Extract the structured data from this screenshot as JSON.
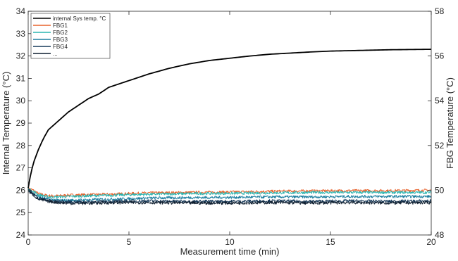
{
  "chart_data": {
    "type": "line",
    "title": "",
    "xlabel": "Measurement time (min)",
    "ylabel_left": "Internal Temperature (°C)",
    "ylabel_right": "FBG Temperature (°C)",
    "xlim": [
      0,
      20
    ],
    "ylim_left": [
      24,
      34
    ],
    "ylim_right": [
      48,
      58
    ],
    "x_ticks": [
      "0",
      "5",
      "10",
      "15",
      "20"
    ],
    "y_ticks_left": [
      "24",
      "25",
      "26",
      "27",
      "28",
      "29",
      "30",
      "31",
      "32",
      "33",
      "34"
    ],
    "y_ticks_right": [
      "48",
      "50",
      "52",
      "54",
      "56",
      "58"
    ],
    "grid": false,
    "legend_position": "top-left",
    "series": [
      {
        "name": "internal Sys temp. °C",
        "axis": "left",
        "color": "#000000",
        "noise": 0,
        "x": [
          0,
          0.1,
          0.25,
          0.5,
          0.75,
          1,
          1.5,
          2,
          2.5,
          3,
          3.5,
          4,
          5,
          6,
          7,
          8,
          9,
          10,
          11,
          12,
          13,
          14,
          15,
          16,
          17,
          18,
          19,
          20
        ],
        "y": [
          26.1,
          26.6,
          27.2,
          27.8,
          28.3,
          28.7,
          29.1,
          29.5,
          29.8,
          30.1,
          30.3,
          30.6,
          30.9,
          31.2,
          31.45,
          31.65,
          31.8,
          31.9,
          32.0,
          32.08,
          32.13,
          32.18,
          32.22,
          32.24,
          32.26,
          32.28,
          32.29,
          32.3
        ]
      },
      {
        "name": "FBG1",
        "axis": "right",
        "color": "#e8622c",
        "noise": 0.06,
        "x": [
          0,
          0.25,
          0.5,
          1,
          1.5,
          2,
          3,
          4,
          5,
          6,
          8,
          10,
          12,
          14,
          16,
          18,
          20
        ],
        "y": [
          50.1,
          50.0,
          49.85,
          49.75,
          49.75,
          49.78,
          49.8,
          49.82,
          49.85,
          49.88,
          49.9,
          49.92,
          49.95,
          49.97,
          49.98,
          49.98,
          50.0
        ]
      },
      {
        "name": "FBG2",
        "axis": "right",
        "color": "#2ab5b1",
        "noise": 0.06,
        "x": [
          0,
          0.25,
          0.5,
          1,
          1.5,
          2,
          3,
          4,
          5,
          6,
          8,
          10,
          12,
          14,
          16,
          18,
          20
        ],
        "y": [
          50.05,
          49.95,
          49.8,
          49.7,
          49.7,
          49.72,
          49.75,
          49.77,
          49.8,
          49.82,
          49.85,
          49.86,
          49.88,
          49.9,
          49.9,
          49.9,
          49.9
        ]
      },
      {
        "name": "FBG3",
        "axis": "right",
        "color": "#1d7fa0",
        "noise": 0.06,
        "x": [
          0,
          0.25,
          0.5,
          1,
          1.5,
          2,
          3,
          4,
          5,
          6,
          8,
          10,
          12,
          14,
          16,
          18,
          20
        ],
        "y": [
          50.0,
          49.85,
          49.7,
          49.6,
          49.55,
          49.55,
          49.57,
          49.6,
          49.62,
          49.65,
          49.67,
          49.68,
          49.7,
          49.7,
          49.72,
          49.72,
          49.72
        ]
      },
      {
        "name": "FBG4",
        "axis": "right",
        "color": "#173a5a",
        "noise": 0.07,
        "x": [
          0,
          0.25,
          0.5,
          1,
          1.5,
          2,
          3,
          4,
          5,
          6,
          8,
          10,
          12,
          14,
          16,
          18,
          20
        ],
        "y": [
          50.0,
          49.85,
          49.65,
          49.55,
          49.5,
          49.48,
          49.48,
          49.5,
          49.52,
          49.52,
          49.5,
          49.5,
          49.52,
          49.5,
          49.52,
          49.5,
          49.52
        ]
      },
      {
        "name": "...",
        "axis": "right",
        "color": "#0f1f30",
        "noise": 0.07,
        "x": [
          0,
          0.25,
          0.5,
          1,
          1.5,
          2,
          3,
          4,
          5,
          6,
          8,
          10,
          12,
          14,
          16,
          18,
          20
        ],
        "y": [
          49.95,
          49.8,
          49.6,
          49.5,
          49.45,
          49.42,
          49.42,
          49.44,
          49.45,
          49.45,
          49.43,
          49.43,
          49.45,
          49.43,
          49.45,
          49.43,
          49.45
        ]
      }
    ]
  }
}
